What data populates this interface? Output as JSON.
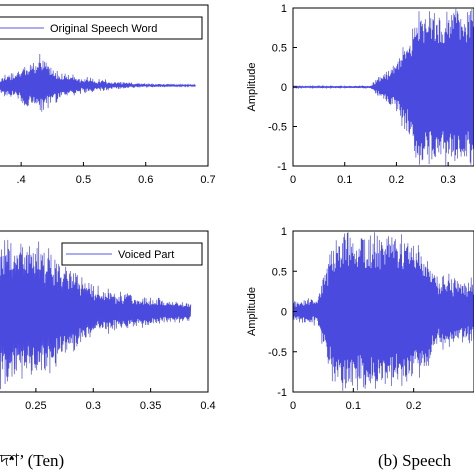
{
  "charts": [
    {
      "x": [
        0.35,
        0.7
      ],
      "y": [
        -1,
        1
      ],
      "xticks": [
        {
          "v": 0.4,
          "t": ".4"
        },
        {
          "v": 0.5,
          "t": "0.5"
        },
        {
          "v": 0.6,
          "t": "0.6"
        },
        {
          "v": 0.7,
          "t": "0.7"
        }
      ],
      "yticks": [],
      "ylabel": "",
      "legend": "Original Speech Word",
      "wave": [
        [
          0.35,
          0.02,
          0.05
        ],
        [
          0.4,
          0.15,
          0.25
        ],
        [
          0.43,
          0.25,
          0.42
        ],
        [
          0.46,
          0.12,
          0.2
        ],
        [
          0.5,
          0.05,
          0.12
        ],
        [
          0.55,
          0.02,
          0.06
        ],
        [
          0.6,
          0.01,
          0.03
        ],
        [
          0.68,
          0.005,
          0.01
        ]
      ]
    },
    {
      "x": [
        0,
        0.35
      ],
      "y": [
        -1,
        1
      ],
      "xticks": [
        {
          "v": 0,
          "t": "0"
        },
        {
          "v": 0.1,
          "t": "0.1"
        },
        {
          "v": 0.2,
          "t": "0.2"
        },
        {
          "v": 0.3,
          "t": "0.3"
        }
      ],
      "yticks": [
        {
          "v": 1,
          "t": "1"
        },
        {
          "v": 0.5,
          "t": "0.5"
        },
        {
          "v": 0,
          "t": "0"
        },
        {
          "v": -0.5,
          "t": "-0.5"
        },
        {
          "v": -1,
          "t": "-1"
        }
      ],
      "ylabel": "Amplitude",
      "legend": "",
      "wave": [
        [
          0,
          0.01,
          0.01
        ],
        [
          0.15,
          0.01,
          0.02
        ],
        [
          0.17,
          0.1,
          0.18
        ],
        [
          0.2,
          0.25,
          0.35
        ],
        [
          0.23,
          0.6,
          0.8
        ],
        [
          0.24,
          1.0,
          1.0
        ],
        [
          0.35,
          1.0,
          1.0
        ]
      ]
    },
    {
      "x": [
        0.21,
        0.4
      ],
      "y": [
        -1,
        1
      ],
      "xticks": [
        {
          "v": 0.25,
          "t": "0.25"
        },
        {
          "v": 0.3,
          "t": "0.3"
        },
        {
          "v": 0.35,
          "t": "0.35"
        },
        {
          "v": 0.4,
          "t": "0.4"
        }
      ],
      "yticks": [],
      "ylabel": "",
      "legend": "Voiced Part",
      "wave": [
        [
          0.21,
          0.8,
          1.0
        ],
        [
          0.25,
          0.7,
          0.95
        ],
        [
          0.28,
          0.4,
          0.6
        ],
        [
          0.3,
          0.2,
          0.35
        ],
        [
          0.35,
          0.12,
          0.2
        ],
        [
          0.385,
          0.08,
          0.12
        ]
      ]
    },
    {
      "x": [
        0,
        0.3
      ],
      "y": [
        -1,
        1
      ],
      "xticks": [
        {
          "v": 0,
          "t": "0"
        },
        {
          "v": 0.1,
          "t": "0.1"
        },
        {
          "v": 0.2,
          "t": "0.2"
        }
      ],
      "yticks": [
        {
          "v": 1,
          "t": "1"
        },
        {
          "v": 0.5,
          "t": "0.5"
        },
        {
          "v": 0,
          "t": "0"
        },
        {
          "v": -0.5,
          "t": "-0.5"
        },
        {
          "v": -1,
          "t": "-1"
        }
      ],
      "ylabel": "Amplitude",
      "legend": "",
      "wave": [
        [
          0,
          0.08,
          0.15
        ],
        [
          0.04,
          0.1,
          0.2
        ],
        [
          0.06,
          0.6,
          0.85
        ],
        [
          0.08,
          1.0,
          1.0
        ],
        [
          0.2,
          0.9,
          1.0
        ],
        [
          0.24,
          0.35,
          0.5
        ],
        [
          0.3,
          0.3,
          0.45
        ]
      ]
    }
  ],
  "captions": {
    "left": "দশ’ (Ten)",
    "right": "(b) Speech"
  },
  "colors": {
    "wave": "#4a4adf",
    "axis": "#000000",
    "legend_line": "#5a5ae6"
  }
}
